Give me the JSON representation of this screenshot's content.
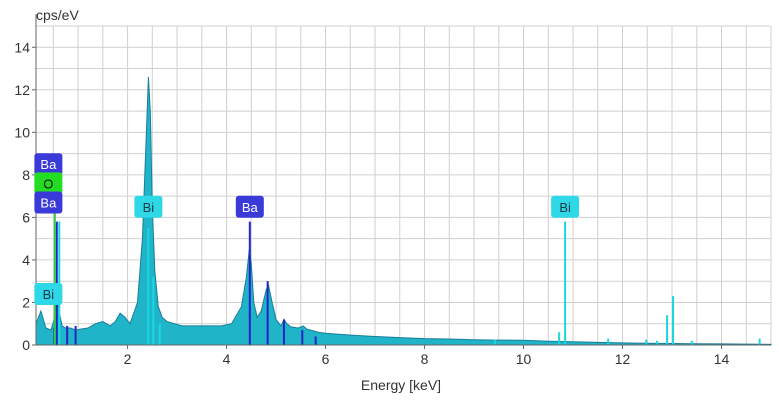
{
  "chart_data": {
    "type": "area",
    "title": "",
    "xlabel": "Energy [keV]",
    "ylabel": "cps/eV",
    "xlim": [
      0.15,
      15.0
    ],
    "ylim": [
      0,
      15
    ],
    "x_ticks": [
      2,
      4,
      6,
      8,
      10,
      12,
      14
    ],
    "y_ticks": [
      0,
      2,
      4,
      6,
      8,
      10,
      12,
      14
    ],
    "grid": true,
    "colors": {
      "spectrum_fill": "#1fb4c8",
      "spectrum_edge": "#1a7d9a",
      "ba_line": "#2323c8",
      "bi_line": "#19d8e0",
      "o_line": "#2ecc40",
      "ba_label_bg": "#3a3ad8",
      "bi_label_bg": "#2fd8e6",
      "o_label_bg": "#22dd22",
      "grid": "#d0d0d0",
      "axis": "#666666"
    },
    "series": [
      {
        "x": [
          0.15,
          0.25,
          0.35,
          0.45,
          0.52,
          0.58,
          0.62,
          0.68,
          0.75,
          0.85,
          0.95,
          1.05,
          1.2,
          1.35,
          1.5,
          1.65,
          1.75,
          1.85,
          1.95,
          2.05,
          2.2,
          2.3,
          2.38,
          2.42,
          2.46,
          2.5,
          2.55,
          2.62,
          2.7,
          2.8,
          2.95,
          3.1,
          3.3,
          3.5,
          3.7,
          3.9,
          4.1,
          4.3,
          4.4,
          4.46,
          4.5,
          4.55,
          4.62,
          4.7,
          4.8,
          4.85,
          4.92,
          5.0,
          5.1,
          5.16,
          5.22,
          5.3,
          5.45,
          5.55,
          5.62,
          5.7,
          5.85,
          6.0,
          6.3,
          6.6,
          7.0,
          7.5,
          8.0,
          8.5,
          9.0,
          9.5,
          10.0,
          10.5,
          11.0,
          11.5,
          12.0,
          12.5,
          13.0,
          13.5,
          14.0,
          14.5,
          15.0
        ],
        "values": [
          1.0,
          1.6,
          0.8,
          0.7,
          1.2,
          2.5,
          1.5,
          0.9,
          0.8,
          0.8,
          0.7,
          0.75,
          0.8,
          1.0,
          1.1,
          0.9,
          1.1,
          1.5,
          1.3,
          1.0,
          2.0,
          5.0,
          10.0,
          12.6,
          11.0,
          6.5,
          3.5,
          1.8,
          1.3,
          1.1,
          1.0,
          0.9,
          0.9,
          0.9,
          0.9,
          0.9,
          1.0,
          1.8,
          3.2,
          4.5,
          3.8,
          2.0,
          1.3,
          1.6,
          2.6,
          2.8,
          2.0,
          1.2,
          0.9,
          1.2,
          1.0,
          0.85,
          0.8,
          0.9,
          0.75,
          0.7,
          0.6,
          0.55,
          0.5,
          0.45,
          0.4,
          0.35,
          0.3,
          0.28,
          0.25,
          0.23,
          0.22,
          0.18,
          0.15,
          0.12,
          0.1,
          0.08,
          0.07,
          0.06,
          0.05,
          0.04,
          0.03
        ]
      }
    ],
    "element_lines": [
      {
        "element": "Ba",
        "x": 0.52,
        "y": 0.8
      },
      {
        "element": "Ba",
        "x": 0.57,
        "y": 5.8
      },
      {
        "element": "O",
        "x": 0.53,
        "y": 7.0
      },
      {
        "element": "Bi",
        "x": 0.62,
        "y": 5.8
      },
      {
        "element": "Ba",
        "x": 0.78,
        "y": 0.9
      },
      {
        "element": "Ba",
        "x": 0.95,
        "y": 0.9
      },
      {
        "element": "Bi",
        "x": 2.42,
        "y": 5.5
      },
      {
        "element": "Bi",
        "x": 2.52,
        "y": 3.2
      },
      {
        "element": "Bi",
        "x": 2.65,
        "y": 1.0
      },
      {
        "element": "Ba",
        "x": 4.47,
        "y": 5.8
      },
      {
        "element": "Ba",
        "x": 4.83,
        "y": 3.0
      },
      {
        "element": "Ba",
        "x": 5.16,
        "y": 1.2
      },
      {
        "element": "Ba",
        "x": 5.53,
        "y": 0.7
      },
      {
        "element": "Ba",
        "x": 5.8,
        "y": 0.4
      },
      {
        "element": "Bi",
        "x": 9.42,
        "y": 0.25
      },
      {
        "element": "Bi",
        "x": 10.72,
        "y": 0.6
      },
      {
        "element": "Bi",
        "x": 10.84,
        "y": 5.8
      },
      {
        "element": "Bi",
        "x": 11.71,
        "y": 0.3
      },
      {
        "element": "Bi",
        "x": 12.48,
        "y": 0.25
      },
      {
        "element": "Bi",
        "x": 12.7,
        "y": 0.2
      },
      {
        "element": "Bi",
        "x": 12.9,
        "y": 1.4
      },
      {
        "element": "Bi",
        "x": 13.02,
        "y": 2.3
      },
      {
        "element": "Bi",
        "x": 13.4,
        "y": 0.2
      },
      {
        "element": "Bi",
        "x": 14.77,
        "y": 0.3
      }
    ],
    "peak_labels": [
      {
        "text": "Ba",
        "x": 0.4,
        "y": 8.5,
        "element": "Ba"
      },
      {
        "text": "O",
        "x": 0.4,
        "y": 7.6,
        "element": "O"
      },
      {
        "text": "Ba",
        "x": 0.4,
        "y": 6.7,
        "element": "Ba"
      },
      {
        "text": "Bi",
        "x": 0.4,
        "y": 2.4,
        "element": "Bi"
      },
      {
        "text": "Bi",
        "x": 2.42,
        "y": 6.5,
        "element": "Bi"
      },
      {
        "text": "Ba",
        "x": 4.47,
        "y": 6.5,
        "element": "Ba"
      },
      {
        "text": "Bi",
        "x": 10.84,
        "y": 6.5,
        "element": "Bi"
      }
    ]
  }
}
